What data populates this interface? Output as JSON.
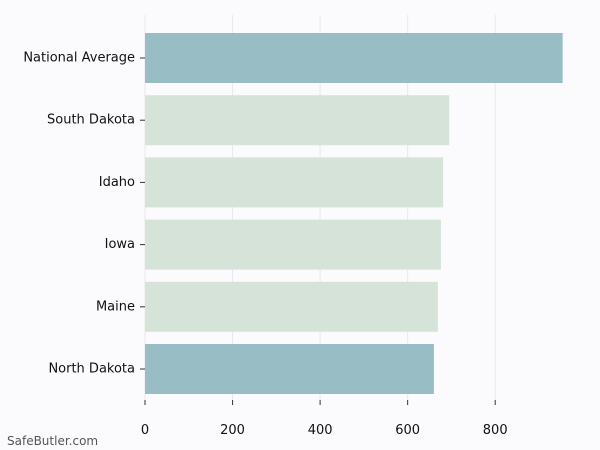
{
  "chart_data": {
    "type": "bar",
    "orientation": "horizontal",
    "categories": [
      "National Average",
      "South Dakota",
      "Idaho",
      "Iowa",
      "Maine",
      "North Dakota"
    ],
    "values": [
      954,
      695,
      681,
      676,
      669,
      660
    ],
    "xlim": [
      0,
      980
    ],
    "xticks": [
      0,
      200,
      400,
      600,
      800
    ],
    "grid": "vertical",
    "highlight_categories": [
      "National Average",
      "North Dakota"
    ],
    "colors": {
      "highlight": "#98bdc5",
      "default": "#d5e3d9",
      "grid": "#e8e8ec",
      "background": "#fbfbfd"
    }
  },
  "watermark": "SafeButler.com"
}
